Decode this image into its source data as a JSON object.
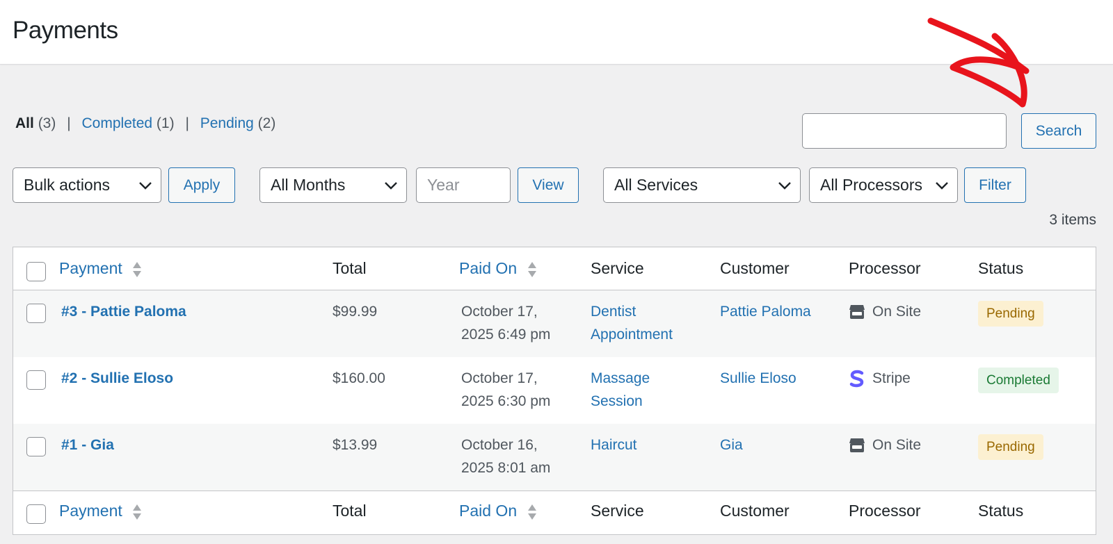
{
  "page": {
    "title": "Payments"
  },
  "filters_nav": {
    "all": {
      "label": "All",
      "count": "(3)"
    },
    "completed": {
      "label": "Completed",
      "count": "(1)"
    },
    "pending": {
      "label": "Pending",
      "count": "(2)"
    },
    "separator": "|"
  },
  "search": {
    "placeholder": "",
    "button_label": "Search"
  },
  "toolbar": {
    "bulk_actions": "Bulk actions",
    "apply_label": "Apply",
    "months": "All Months",
    "year_placeholder": "Year",
    "view_label": "View",
    "services": "All Services",
    "processors": "All Processors",
    "filter_label": "Filter"
  },
  "items_count": "3 items",
  "table": {
    "columns": [
      "Payment",
      "Total",
      "Paid On",
      "Service",
      "Customer",
      "Processor",
      "Status"
    ],
    "rows": [
      {
        "payment": "#3 - Pattie Paloma",
        "total": "$99.99",
        "paid_line1": "October 17,",
        "paid_line2": "2025 6:49 pm",
        "service_line1": "Dentist",
        "service_line2": "Appointment",
        "customer": "Pattie Paloma",
        "processor": "On Site",
        "processor_icon": "store-icon",
        "status": "Pending"
      },
      {
        "payment": "#2 - Sullie Eloso",
        "total": "$160.00",
        "paid_line1": "October 17,",
        "paid_line2": "2025 6:30 pm",
        "service_line1": "Massage",
        "service_line2": "Session",
        "customer": "Sullie Eloso",
        "processor": "Stripe",
        "processor_icon": "stripe-icon",
        "status": "Completed"
      },
      {
        "payment": "#1 - Gia",
        "total": "$13.99",
        "paid_line1": "October 16,",
        "paid_line2": "2025 8:01 am",
        "service_line1": "Haircut",
        "service_line2": "",
        "customer": "Gia",
        "processor": "On Site",
        "processor_icon": "store-icon",
        "status": "Pending"
      }
    ]
  },
  "colors": {
    "link": "#2271b1",
    "arrow": "#e8141c",
    "pending_bg": "#fcf0d1",
    "completed_bg": "#e6f5e9"
  }
}
